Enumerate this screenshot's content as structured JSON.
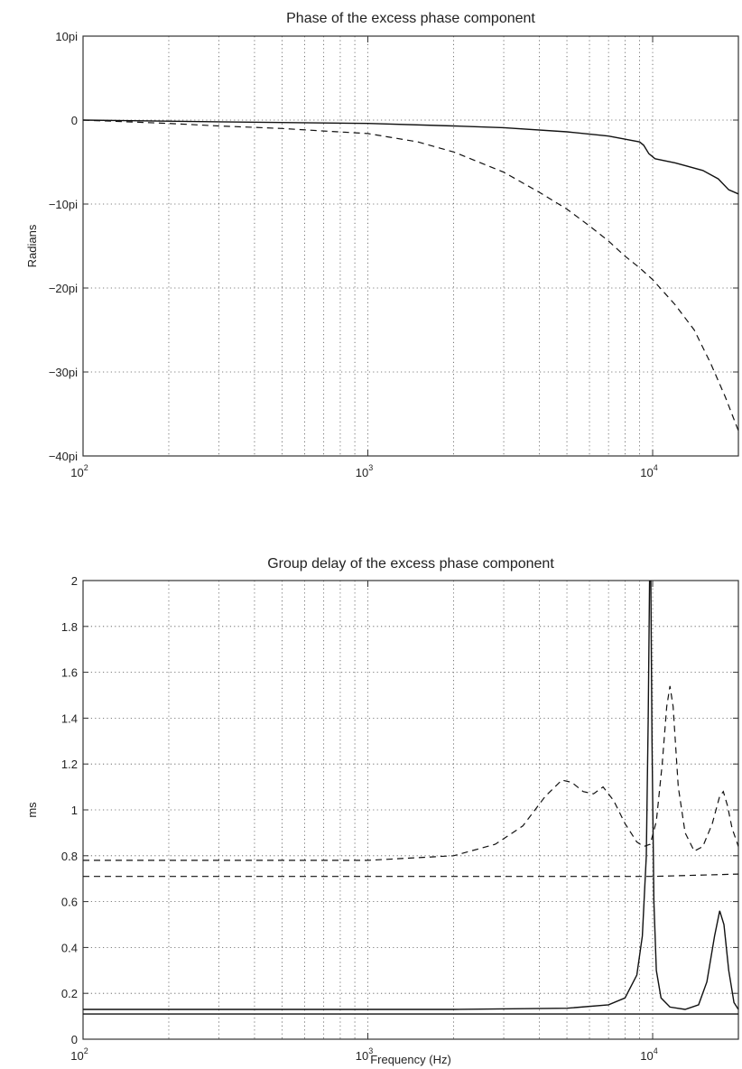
{
  "chart_data": [
    {
      "type": "line",
      "title": "Phase of the excess phase component",
      "xlabel": "",
      "ylabel": "Radians",
      "xscale": "log",
      "xlim": [
        100,
        20000
      ],
      "ylim": [
        -40,
        10
      ],
      "y_unit": "pi",
      "x_ticks": [
        {
          "base": "10",
          "exp": "2",
          "value": 100
        },
        {
          "base": "10",
          "exp": "3",
          "value": 1000
        },
        {
          "base": "10",
          "exp": "4",
          "value": 10000
        }
      ],
      "y_ticks": [
        {
          "label": "10pi",
          "value": 10
        },
        {
          "label": "0",
          "value": 0
        },
        {
          "label": "−10pi",
          "value": -10
        },
        {
          "label": "−20pi",
          "value": -20
        },
        {
          "label": "−30pi",
          "value": -30
        },
        {
          "label": "−40pi",
          "value": -40
        }
      ],
      "grid": true,
      "series": [
        {
          "style": "solid",
          "points": [
            [
              100,
              0
            ],
            [
              300,
              -0.2
            ],
            [
              1000,
              -0.4
            ],
            [
              2000,
              -0.7
            ],
            [
              3000,
              -0.9
            ],
            [
              5000,
              -1.4
            ],
            [
              7000,
              -1.9
            ],
            [
              9000,
              -2.6
            ],
            [
              9300,
              -3.0
            ],
            [
              9700,
              -4.0
            ],
            [
              10200,
              -4.6
            ],
            [
              12000,
              -5.1
            ],
            [
              15000,
              -6.0
            ],
            [
              17000,
              -7.0
            ],
            [
              18500,
              -8.3
            ],
            [
              20000,
              -8.8
            ]
          ]
        },
        {
          "style": "dashed",
          "points": [
            [
              100,
              0
            ],
            [
              200,
              -0.4
            ],
            [
              300,
              -0.7
            ],
            [
              500,
              -1.0
            ],
            [
              700,
              -1.3
            ],
            [
              1000,
              -1.6
            ],
            [
              1500,
              -2.6
            ],
            [
              2000,
              -3.8
            ],
            [
              3000,
              -6.2
            ],
            [
              4000,
              -8.6
            ],
            [
              5000,
              -10.6
            ],
            [
              6000,
              -12.6
            ],
            [
              7000,
              -14.4
            ],
            [
              8000,
              -16.2
            ],
            [
              9000,
              -17.6
            ],
            [
              10000,
              -19.0
            ],
            [
              12000,
              -22.0
            ],
            [
              14000,
              -25.0
            ],
            [
              16000,
              -29.0
            ],
            [
              18000,
              -33.0
            ],
            [
              20000,
              -37.0
            ]
          ]
        }
      ]
    },
    {
      "type": "line",
      "title": "Group delay of the excess phase component",
      "xlabel": "Frequency (Hz)",
      "ylabel": "ms",
      "xscale": "log",
      "xlim": [
        100,
        20000
      ],
      "ylim": [
        0,
        2
      ],
      "x_ticks": [
        {
          "base": "10",
          "exp": "2",
          "value": 100
        },
        {
          "base": "10",
          "exp": "3",
          "value": 1000
        },
        {
          "base": "10",
          "exp": "4",
          "value": 10000
        }
      ],
      "y_ticks": [
        {
          "label": "0",
          "value": 0
        },
        {
          "label": "0.2",
          "value": 0.2
        },
        {
          "label": "0.4",
          "value": 0.4
        },
        {
          "label": "0.6",
          "value": 0.6
        },
        {
          "label": "0.8",
          "value": 0.8
        },
        {
          "label": "1",
          "value": 1
        },
        {
          "label": "1.2",
          "value": 1.2
        },
        {
          "label": "1.4",
          "value": 1.4
        },
        {
          "label": "1.6",
          "value": 1.6
        },
        {
          "label": "1.8",
          "value": 1.8
        },
        {
          "label": "2",
          "value": 2
        }
      ],
      "grid": true,
      "series": [
        {
          "style": "solid",
          "points": [
            [
              100,
              0.13
            ],
            [
              2000,
              0.13
            ],
            [
              5000,
              0.135
            ],
            [
              7000,
              0.15
            ],
            [
              8000,
              0.18
            ],
            [
              8800,
              0.28
            ],
            [
              9200,
              0.45
            ],
            [
              9500,
              0.8
            ],
            [
              9650,
              1.4
            ],
            [
              9750,
              2.0
            ],
            [
              9850,
              2.0
            ],
            [
              9950,
              1.3
            ],
            [
              10100,
              0.6
            ],
            [
              10300,
              0.3
            ],
            [
              10700,
              0.18
            ],
            [
              11500,
              0.14
            ],
            [
              13000,
              0.13
            ],
            [
              14500,
              0.15
            ],
            [
              15500,
              0.25
            ],
            [
              16500,
              0.45
            ],
            [
              17200,
              0.56
            ],
            [
              17800,
              0.5
            ],
            [
              18500,
              0.3
            ],
            [
              19300,
              0.16
            ],
            [
              20000,
              0.13
            ]
          ]
        },
        {
          "style": "solid",
          "points": [
            [
              100,
              0.11
            ],
            [
              20000,
              0.11
            ]
          ]
        },
        {
          "style": "dashed",
          "points": [
            [
              100,
              0.78
            ],
            [
              1000,
              0.78
            ],
            [
              2000,
              0.8
            ],
            [
              2800,
              0.85
            ],
            [
              3500,
              0.93
            ],
            [
              4200,
              1.06
            ],
            [
              4800,
              1.13
            ],
            [
              5200,
              1.12
            ],
            [
              5700,
              1.08
            ],
            [
              6200,
              1.07
            ],
            [
              6700,
              1.1
            ],
            [
              7300,
              1.04
            ],
            [
              8000,
              0.94
            ],
            [
              8800,
              0.86
            ],
            [
              9300,
              0.84
            ],
            [
              9800,
              0.85
            ],
            [
              10300,
              0.95
            ],
            [
              10800,
              1.2
            ],
            [
              11200,
              1.45
            ],
            [
              11500,
              1.54
            ],
            [
              11800,
              1.45
            ],
            [
              12300,
              1.1
            ],
            [
              13000,
              0.9
            ],
            [
              14000,
              0.82
            ],
            [
              15000,
              0.84
            ],
            [
              16200,
              0.94
            ],
            [
              17200,
              1.06
            ],
            [
              17700,
              1.08
            ],
            [
              18300,
              1.02
            ],
            [
              19000,
              0.92
            ],
            [
              20000,
              0.84
            ]
          ]
        },
        {
          "style": "dashed",
          "points": [
            [
              100,
              0.71
            ],
            [
              10000,
              0.71
            ],
            [
              20000,
              0.72
            ]
          ]
        }
      ]
    }
  ]
}
